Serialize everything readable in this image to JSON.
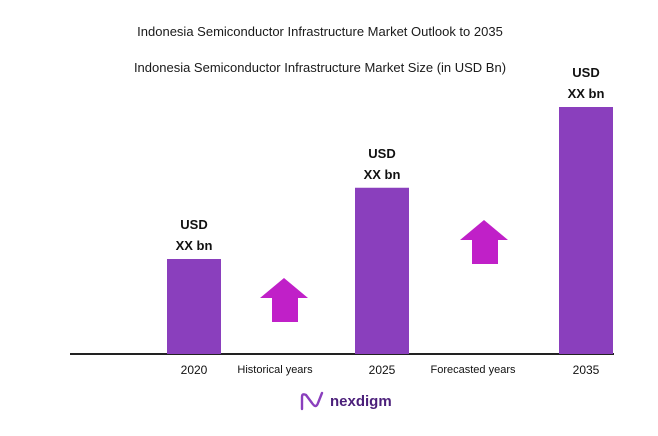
{
  "title": "Indonesia Semiconductor Infrastructure Market Outlook to 2035",
  "subtitle": "Indonesia Semiconductor Infrastructure Market Size (in USD Bn)",
  "brand": "nexdigm",
  "colors": {
    "bar": "#8a3fbd",
    "arrow": "#c020c8",
    "axis": "#222222"
  },
  "chart_data": {
    "type": "bar",
    "categories": [
      "2020",
      "2025",
      "2035"
    ],
    "values": [
      1,
      1.75,
      2.6
    ],
    "data_labels": [
      [
        "USD",
        "XX bn"
      ],
      [
        "USD",
        "XX bn"
      ],
      [
        "USD",
        "XX bn"
      ]
    ],
    "annotations": [
      {
        "text": "Historical years",
        "between": [
          "2020",
          "2025"
        ],
        "icon": "up-arrow-icon"
      },
      {
        "text": "Forecasted years",
        "between": [
          "2025",
          "2035"
        ],
        "icon": "up-arrow-icon"
      }
    ],
    "title": "Indonesia Semiconductor Infrastructure Market Outlook to 2035",
    "xlabel": "",
    "ylabel": "",
    "grid": false,
    "legend": "none"
  }
}
